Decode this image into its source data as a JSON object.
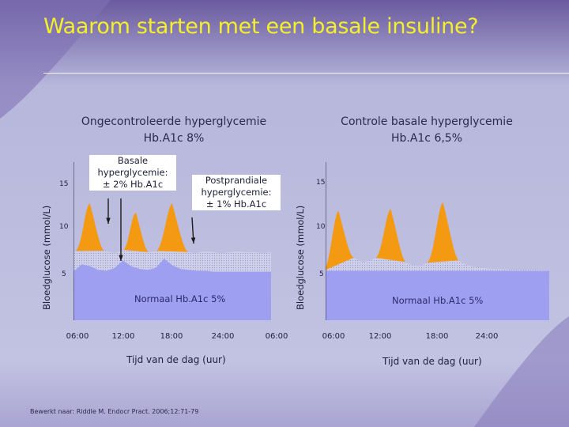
{
  "slide": {
    "title": "Waarom starten met een basale insuline?",
    "source": "Bewerkt naar: Riddle M. Endocr Pract. 2006;12:71-79",
    "colors": {
      "title": "#f4ef2a",
      "background": "#bdbddf",
      "orange": "#f39a12",
      "normal_fill": "#9f9ff2",
      "dotted_band": "#c9c9e8"
    }
  },
  "chart_data": [
    {
      "type": "area",
      "title_lines": [
        "Ongecontroleerde hyperglycemie",
        "Hb.A1c 8%"
      ],
      "ylabel": "Bloedglucose (mmol/L)",
      "xlabel": "Tijd van de dag (uur)",
      "ylim": [
        3,
        17
      ],
      "yticks": [
        5,
        10,
        15
      ],
      "x_ticks": [
        "06:00",
        "12:00",
        "18:00",
        "24:00",
        "06:00"
      ],
      "xlim": [
        0,
        24
      ],
      "series": [
        {
          "role": "normal",
          "label": "Normaal Hb.A1c 5%",
          "x": [
            0,
            1,
            2,
            3,
            4,
            5,
            6,
            7,
            8,
            9,
            10,
            11,
            12,
            13,
            14,
            15,
            16,
            17,
            18,
            19,
            20,
            21,
            22,
            23,
            24
          ],
          "y": [
            5.2,
            6.0,
            5.8,
            5.4,
            5.3,
            5.6,
            6.4,
            5.8,
            5.5,
            5.4,
            5.6,
            6.6,
            5.9,
            5.5,
            5.4,
            5.3,
            5.3,
            5.2,
            5.2,
            5.2,
            5.2,
            5.2,
            5.2,
            5.2,
            5.2
          ]
        },
        {
          "role": "basal",
          "x": [
            0,
            1,
            2,
            3,
            4,
            5,
            6,
            7,
            8,
            9,
            10,
            11,
            12,
            13,
            14,
            15,
            16,
            17,
            18,
            19,
            20,
            21,
            22,
            23,
            24
          ],
          "y": [
            7.5,
            7.3,
            7.4,
            7.6,
            7.4,
            7.2,
            7.5,
            7.9,
            7.3,
            7.3,
            7.4,
            7.8,
            7.6,
            7.4,
            7.3,
            7.2,
            7.4,
            7.3,
            7.2,
            7.3,
            7.4,
            7.3,
            7.3,
            7.2,
            7.3
          ]
        },
        {
          "role": "postprandial",
          "peaks": [
            {
              "x": 2.0,
              "y": 12.5,
              "width": 3.4
            },
            {
              "x": 7.6,
              "y": 11.5,
              "width": 3.0
            },
            {
              "x": 12.0,
              "y": 12.5,
              "width": 3.8
            }
          ]
        }
      ],
      "annotations": [
        {
          "lines": [
            "Basale",
            "hyperglycemie:",
            "± 2% Hb.A1c"
          ]
        },
        {
          "lines": [
            "Postprandiale",
            "hyperglycemie:",
            "± 1% Hb.A1c"
          ]
        }
      ],
      "grid": false
    },
    {
      "type": "area",
      "title_lines": [
        "Controle basale hyperglycemie",
        "Hb.A1c 6,5%"
      ],
      "ylabel": "Bloedglucose (mmol/L)",
      "xlabel": "Tijd van de dag (uur)",
      "ylim": [
        3,
        17
      ],
      "yticks": [
        5,
        10,
        15
      ],
      "x_ticks": [
        "06:00",
        "12:00",
        "18:00",
        "24:00"
      ],
      "xlim": [
        0,
        24
      ],
      "series": [
        {
          "role": "normal",
          "label": "Normaal Hb.A1c 5%",
          "x": [
            0,
            24
          ],
          "y": [
            5.3,
            5.3
          ]
        },
        {
          "role": "basal",
          "x": [
            0,
            1,
            2,
            3,
            4,
            5,
            6,
            7,
            8,
            9,
            10,
            11,
            12,
            13,
            14,
            15,
            16,
            17,
            18,
            19,
            20,
            21,
            22,
            23,
            24
          ],
          "y": [
            5.3,
            7.0,
            7.3,
            6.7,
            6.2,
            6.5,
            7.0,
            7.2,
            6.6,
            6.0,
            5.8,
            6.2,
            7.0,
            7.3,
            6.6,
            6.0,
            5.7,
            5.6,
            5.5,
            5.5,
            5.4,
            5.4,
            5.4,
            5.4,
            5.3
          ]
        },
        {
          "role": "postprandial",
          "peaks": [
            {
              "x": 1.4,
              "y": 11.7,
              "width": 3.2
            },
            {
              "x": 7.0,
              "y": 11.9,
              "width": 3.2
            },
            {
              "x": 12.6,
              "y": 12.6,
              "width": 3.4
            }
          ]
        }
      ],
      "grid": false
    }
  ]
}
